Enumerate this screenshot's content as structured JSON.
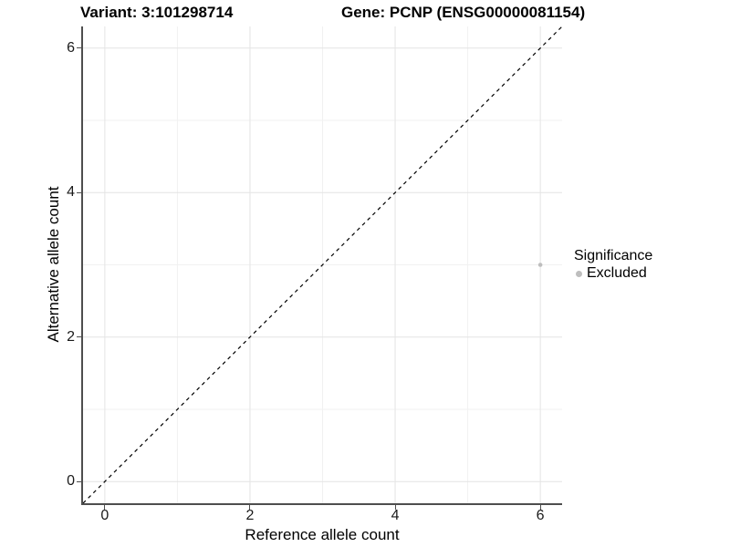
{
  "title_left": "Variant: 3:101298714",
  "title_right": "Gene: PCNP (ENSG00000081154)",
  "legend": {
    "title": "Significance",
    "items": [
      {
        "label": "Excluded",
        "color": "#bebebe"
      }
    ]
  },
  "chart_data": {
    "type": "scatter",
    "title": "Variant: 3:101298714 / Gene: PCNP (ENSG00000081154)",
    "xlabel": "Reference allele count",
    "ylabel": "Alternative allele count",
    "xlim": [
      -0.3,
      6.3
    ],
    "ylim": [
      -0.3,
      6.3
    ],
    "x_ticks": [
      0,
      2,
      4,
      6
    ],
    "y_ticks": [
      0,
      2,
      4,
      6
    ],
    "x_minor_ticks": [
      1,
      3,
      5
    ],
    "y_minor_ticks": [
      1,
      3,
      5
    ],
    "grid": true,
    "legend_position": "right",
    "series": [
      {
        "name": "Excluded",
        "color": "#bebebe",
        "points": [
          {
            "x": 6,
            "y": 3
          }
        ],
        "point_radius": 2.3
      }
    ],
    "reference_line": {
      "type": "identity",
      "style": "dashed",
      "color": "#000000",
      "from": [
        -0.3,
        -0.3
      ],
      "to": [
        6.3,
        6.3
      ]
    },
    "colors": {
      "grid_major": "#e4e4e4",
      "grid_minor": "#f1f1f1",
      "axis_line": "#4e4e4e",
      "background": "#ffffff"
    }
  }
}
